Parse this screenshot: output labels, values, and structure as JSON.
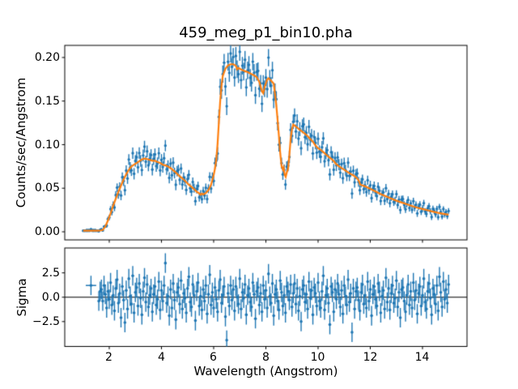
{
  "chart_data": {
    "type": "scatter",
    "title": "459_meg_p1_bin10.pha",
    "legend": null,
    "grid": false,
    "x_axis": {
      "label": "Wavelength (Angstrom)",
      "lim": [
        0.295,
        15.705
      ],
      "ticks": [
        2,
        4,
        6,
        8,
        10,
        12,
        14
      ],
      "tick_labels": [
        "2",
        "4",
        "6",
        "8",
        "10",
        "12",
        "14"
      ]
    },
    "top_panel": {
      "ylabel": "Counts/sec/Angstrom",
      "ylim": [
        -0.0093,
        0.2139
      ],
      "yticks": [
        0.0,
        0.05,
        0.1,
        0.15,
        0.2
      ],
      "ytick_labels": [
        "0.00",
        "0.05",
        "0.10",
        "0.15",
        "0.20"
      ]
    },
    "bottom_panel": {
      "ylabel": "Sigma",
      "ylim": [
        -5.05,
        5.05
      ],
      "yticks": [
        -2.5,
        0.0,
        2.5
      ],
      "ytick_labels": [
        "−2.5",
        "0.0",
        "2.5"
      ],
      "zero_line": true
    },
    "colors": {
      "data": "#1f77b4",
      "model": "#ff7f0e",
      "zero_line": "#000000"
    },
    "series": {
      "model": {
        "name": "model-fit-line",
        "points": [
          [
            1.0,
            0.0012
          ],
          [
            1.6,
            0.0012
          ],
          [
            1.75,
            0.002
          ],
          [
            1.85,
            0.006
          ],
          [
            1.95,
            0.013
          ],
          [
            2.05,
            0.021
          ],
          [
            2.15,
            0.03
          ],
          [
            2.25,
            0.038
          ],
          [
            2.35,
            0.046
          ],
          [
            2.45,
            0.053
          ],
          [
            2.55,
            0.06
          ],
          [
            2.65,
            0.066
          ],
          [
            2.75,
            0.071
          ],
          [
            2.85,
            0.075
          ],
          [
            2.95,
            0.077
          ],
          [
            3.05,
            0.079
          ],
          [
            3.15,
            0.081
          ],
          [
            3.25,
            0.083
          ],
          [
            3.35,
            0.084
          ],
          [
            3.45,
            0.0835
          ],
          [
            3.55,
            0.0825
          ],
          [
            3.65,
            0.0815
          ],
          [
            3.75,
            0.0815
          ],
          [
            3.85,
            0.08
          ],
          [
            3.95,
            0.079
          ],
          [
            4.05,
            0.077
          ],
          [
            4.15,
            0.0762
          ],
          [
            4.25,
            0.075
          ],
          [
            4.35,
            0.073
          ],
          [
            4.45,
            0.0705
          ],
          [
            4.55,
            0.068
          ],
          [
            4.65,
            0.065
          ],
          [
            4.75,
            0.0625
          ],
          [
            4.85,
            0.06
          ],
          [
            4.95,
            0.057
          ],
          [
            5.05,
            0.054
          ],
          [
            5.15,
            0.0515
          ],
          [
            5.25,
            0.049
          ],
          [
            5.35,
            0.046
          ],
          [
            5.45,
            0.044
          ],
          [
            5.5,
            0.0425
          ],
          [
            5.55,
            0.0438
          ],
          [
            5.6,
            0.0428
          ],
          [
            5.7,
            0.0445
          ],
          [
            5.8,
            0.0478
          ],
          [
            5.9,
            0.054
          ],
          [
            6.0,
            0.065
          ],
          [
            6.05,
            0.0725
          ],
          [
            6.1,
            0.083
          ],
          [
            6.15,
            0.101
          ],
          [
            6.2,
            0.126
          ],
          [
            6.25,
            0.15
          ],
          [
            6.3,
            0.168
          ],
          [
            6.35,
            0.179
          ],
          [
            6.45,
            0.187
          ],
          [
            6.55,
            0.191
          ],
          [
            6.65,
            0.1923
          ],
          [
            6.75,
            0.1923
          ],
          [
            6.85,
            0.1905
          ],
          [
            6.9,
            0.1865
          ],
          [
            6.95,
            0.188
          ],
          [
            7.05,
            0.1862
          ],
          [
            7.15,
            0.1848
          ],
          [
            7.25,
            0.1838
          ],
          [
            7.35,
            0.1825
          ],
          [
            7.45,
            0.181
          ],
          [
            7.55,
            0.1795
          ],
          [
            7.65,
            0.1775
          ],
          [
            7.75,
            0.172
          ],
          [
            7.85,
            0.161
          ],
          [
            7.9,
            0.159
          ],
          [
            7.95,
            0.166
          ],
          [
            8.05,
            0.1745
          ],
          [
            8.1,
            0.1762
          ],
          [
            8.2,
            0.1735
          ],
          [
            8.3,
            0.17
          ],
          [
            8.35,
            0.158
          ],
          [
            8.4,
            0.145
          ],
          [
            8.45,
            0.128
          ],
          [
            8.5,
            0.11
          ],
          [
            8.55,
            0.09
          ],
          [
            8.6,
            0.0755
          ],
          [
            8.65,
            0.0715
          ],
          [
            8.68,
            0.074
          ],
          [
            8.72,
            0.0655
          ],
          [
            8.76,
            0.063
          ],
          [
            8.8,
            0.068
          ],
          [
            8.85,
            0.072
          ],
          [
            8.9,
            0.088
          ],
          [
            8.95,
            0.107
          ],
          [
            9.0,
            0.118
          ],
          [
            9.05,
            0.123
          ],
          [
            9.1,
            0.122
          ],
          [
            9.2,
            0.1195
          ],
          [
            9.3,
            0.117
          ],
          [
            9.4,
            0.1148
          ],
          [
            9.5,
            0.1125
          ],
          [
            9.6,
            0.1098
          ],
          [
            9.7,
            0.1065
          ],
          [
            9.8,
            0.1035
          ],
          [
            9.9,
            0.099
          ],
          [
            10.0,
            0.0958
          ],
          [
            10.1,
            0.094
          ],
          [
            10.2,
            0.0915
          ],
          [
            10.3,
            0.0888
          ],
          [
            10.4,
            0.0862
          ],
          [
            10.5,
            0.0838
          ],
          [
            10.6,
            0.0812
          ],
          [
            10.7,
            0.0775
          ],
          [
            10.8,
            0.0752
          ],
          [
            10.9,
            0.0732
          ],
          [
            11.0,
            0.0712
          ],
          [
            11.1,
            0.0692
          ],
          [
            11.2,
            0.0673
          ],
          [
            11.3,
            0.0655
          ],
          [
            11.4,
            0.0638
          ],
          [
            11.5,
            0.0612
          ],
          [
            11.56,
            0.0585
          ],
          [
            11.62,
            0.054
          ],
          [
            11.7,
            0.0532
          ],
          [
            11.8,
            0.0522
          ],
          [
            11.9,
            0.0507
          ],
          [
            12.0,
            0.0492
          ],
          [
            12.2,
            0.0462
          ],
          [
            12.4,
            0.0432
          ],
          [
            12.6,
            0.0406
          ],
          [
            12.8,
            0.0381
          ],
          [
            13.0,
            0.0357
          ],
          [
            13.2,
            0.0336
          ],
          [
            13.4,
            0.0316
          ],
          [
            13.6,
            0.0296
          ],
          [
            13.8,
            0.0277
          ],
          [
            14.0,
            0.0261
          ],
          [
            14.2,
            0.0246
          ],
          [
            14.4,
            0.0231
          ],
          [
            14.6,
            0.0217
          ],
          [
            14.8,
            0.0206
          ],
          [
            15.0,
            0.0196
          ]
        ]
      },
      "data": {
        "name": "observed-counts",
        "x_start": 1.0,
        "x_step": 0.05,
        "n": 281,
        "err_scale": 0.0235,
        "err_floor": 0.0013,
        "xerr": 0.025,
        "xerr_overrides": {
          "6": 0.2
        },
        "sigma_err": 1.0,
        "sigma_residuals": [
          null,
          null,
          null,
          null,
          null,
          null,
          1.2,
          null,
          null,
          null,
          null,
          null,
          -0.4,
          0.6,
          0.8,
          -0.4,
          1.2,
          0.3,
          -1.1,
          0.6,
          -0.2,
          1.5,
          -0.8,
          0.2,
          -1.4,
          0.9,
          1.8,
          -0.6,
          0.4,
          -2.1,
          1.1,
          -0.3,
          -2.6,
          0.7,
          -1.2,
          1.9,
          0.1,
          -0.7,
          2.2,
          -1.6,
          0.5,
          1.0,
          -0.9,
          1.4,
          -0.1,
          -1.8,
          0.6,
          2.0,
          -0.5,
          1.3,
          -1.0,
          0.2,
          0.9,
          -1.5,
          0.3,
          1.1,
          -0.8,
          -0.2,
          1.6,
          -1.3,
          0.7,
          -0.4,
          1.2,
          3.5,
          -0.6,
          0.1,
          -1.9,
          0.8,
          -1.1,
          1.4,
          -0.3,
          -2.3,
          0.5,
          1.0,
          -0.7,
          1.7,
          -1.2,
          0.4,
          -0.1,
          -1.6,
          0.9,
          2.1,
          -0.5,
          -1.0,
          1.3,
          0.2,
          -2.4,
          0.6,
          1.5,
          -0.9,
          0.1,
          -1.3,
          0.8,
          -0.4,
          1.2,
          -1.7,
          0.3,
          2.3,
          -0.8,
          0.5,
          -1.1,
          1.0,
          -0.2,
          -1.5,
          0.7,
          1.8,
          -0.6,
          0.2,
          1.1,
          -2.0,
          -4.4,
          0.4,
          -0.9,
          1.2,
          -0.3,
          0.8,
          -1.4,
          1.1,
          0.0,
          -0.7,
          1.9,
          -1.2,
          0.5,
          -0.1,
          1.3,
          -1.8,
          0.2,
          0.9,
          -0.5,
          -1.0,
          1.5,
          0.3,
          -2.2,
          0.6,
          1.0,
          -0.8,
          0.4,
          -1.5,
          1.2,
          -0.2,
          0.7,
          -1.1,
          2.4,
          0.1,
          -0.6,
          1.4,
          -1.9,
          0.3,
          0.8,
          -0.4,
          -1.3,
          1.7,
          0.5,
          -0.9,
          0.2,
          -1.6,
          1.1,
          0.6,
          -0.3,
          1.3,
          -1.0,
          0.4,
          1.4,
          -0.7,
          0.9,
          -1.4,
          0.1,
          -2.5,
          0.8,
          1.2,
          -0.5,
          0.3,
          -1.2,
          1.6,
          -0.1,
          0.7,
          -1.8,
          1.0,
          0.4,
          -0.9,
          1.5,
          -0.4,
          -1.1,
          0.6,
          2.2,
          -1.3,
          0.2,
          0.9,
          -0.6,
          -2.8,
          1.1,
          0.5,
          -1.5,
          0.8,
          -0.2,
          1.4,
          0.3,
          -1.0,
          0.7,
          -1.7,
          1.2,
          0.1,
          -0.8,
          1.8,
          -0.5,
          0.4,
          -3.6,
          0.9,
          -1.2,
          0.6,
          1.0,
          -0.3,
          -1.4,
          0.5,
          1.3,
          -0.7,
          0.2,
          -1.1,
          1.6,
          -0.4,
          0.8,
          -1.9,
          0.3,
          1.1,
          -0.2,
          -0.9,
          1.4,
          0.6,
          -1.6,
          0.1,
          0.7,
          -1.2,
          2.0,
          -0.5,
          0.9,
          -1.3,
          0.4,
          1.2,
          -0.6,
          -0.1,
          1.7,
          -1.0,
          0.5,
          -2.1,
          0.8,
          1.0,
          -0.4,
          -1.5,
          0.2,
          1.3,
          -0.8,
          0.6,
          -1.1,
          1.5,
          -0.3,
          0.7,
          -1.7,
          0.4,
          1.1,
          -0.9,
          0.2,
          1.9,
          -0.5,
          -1.2,
          0.6,
          1.4,
          -0.1,
          -1.8,
          0.9,
          0.3,
          -0.7,
          1.2,
          -1.4,
          2.1,
          0.5,
          -1.0,
          1.6,
          -0.2,
          0.8,
          -0.6,
          1.3
        ]
      }
    }
  }
}
